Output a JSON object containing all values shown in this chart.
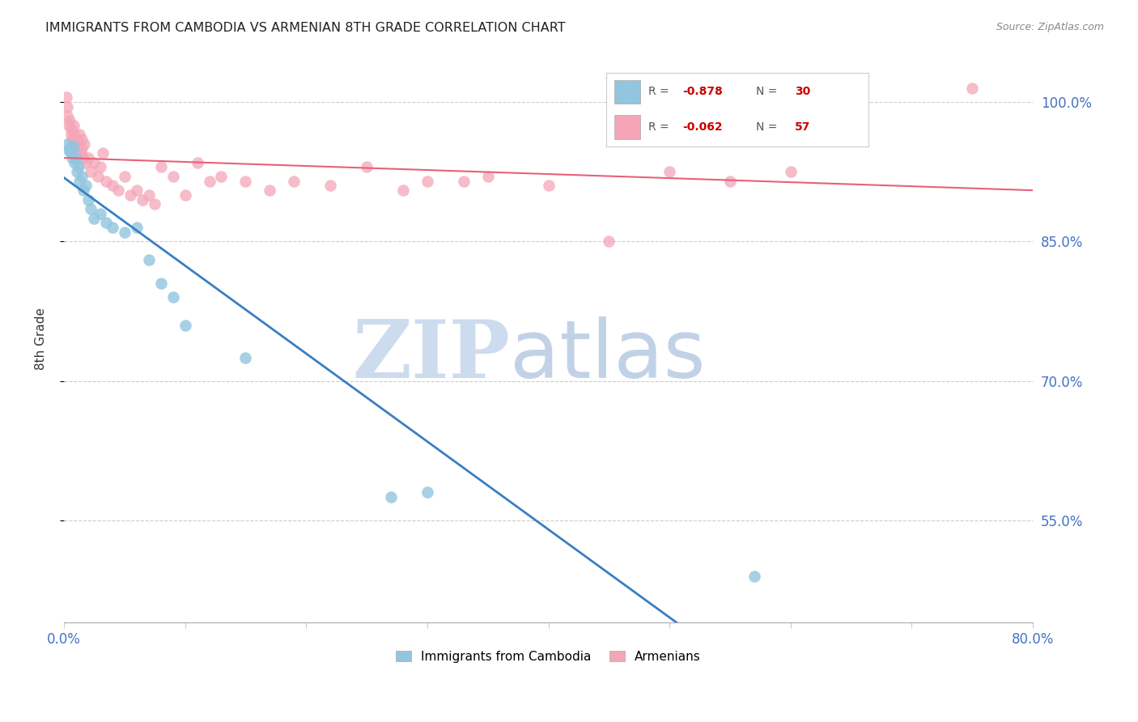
{
  "title": "IMMIGRANTS FROM CAMBODIA VS ARMENIAN 8TH GRADE CORRELATION CHART",
  "source": "Source: ZipAtlas.com",
  "ylabel": "8th Grade",
  "y_ticks": [
    55.0,
    70.0,
    85.0,
    100.0
  ],
  "x_min": 0.0,
  "x_max": 80.0,
  "y_min": 44.0,
  "y_max": 105.0,
  "blue_label": "Immigrants from Cambodia",
  "pink_label": "Armenians",
  "blue_r": -0.878,
  "blue_n": 30,
  "pink_r": -0.062,
  "pink_n": 57,
  "blue_color": "#92c5de",
  "pink_color": "#f4a6b8",
  "blue_edge_color": "#5a9dc0",
  "pink_edge_color": "#e07090",
  "blue_line_color": "#3a7fc1",
  "pink_line_color": "#e8607a",
  "watermark_zip_color": "#c8d8ee",
  "watermark_atlas_color": "#a8c0dc",
  "blue_x": [
    0.3,
    0.4,
    0.5,
    0.6,
    0.7,
    0.8,
    0.9,
    1.0,
    1.1,
    1.2,
    1.3,
    1.5,
    1.6,
    1.8,
    2.0,
    2.2,
    2.5,
    3.0,
    3.5,
    4.0,
    5.0,
    6.0,
    7.0,
    8.0,
    9.0,
    10.0,
    15.0,
    27.0,
    30.0,
    57.0
  ],
  "blue_y": [
    95.5,
    94.8,
    95.0,
    94.5,
    94.0,
    95.2,
    93.5,
    94.0,
    92.5,
    93.0,
    91.5,
    92.0,
    90.5,
    91.0,
    89.5,
    88.5,
    87.5,
    88.0,
    87.0,
    86.5,
    86.0,
    86.5,
    83.0,
    80.5,
    79.0,
    76.0,
    72.5,
    57.5,
    58.0,
    49.0
  ],
  "pink_x": [
    0.2,
    0.3,
    0.3,
    0.4,
    0.5,
    0.6,
    0.6,
    0.7,
    0.8,
    0.8,
    0.9,
    1.0,
    1.1,
    1.2,
    1.3,
    1.4,
    1.5,
    1.5,
    1.6,
    1.7,
    1.8,
    2.0,
    2.2,
    2.5,
    2.8,
    3.0,
    3.2,
    3.5,
    4.0,
    4.5,
    5.0,
    5.5,
    6.0,
    6.5,
    7.0,
    7.5,
    8.0,
    9.0,
    10.0,
    11.0,
    12.0,
    13.0,
    15.0,
    17.0,
    19.0,
    22.0,
    25.0,
    28.0,
    30.0,
    33.0,
    35.0,
    40.0,
    45.0,
    50.0,
    55.0,
    60.0,
    75.0
  ],
  "pink_y": [
    100.5,
    98.5,
    99.5,
    97.5,
    98.0,
    97.0,
    96.5,
    96.0,
    97.5,
    95.5,
    96.5,
    95.0,
    96.0,
    95.5,
    96.5,
    94.5,
    95.0,
    96.0,
    94.0,
    95.5,
    93.5,
    94.0,
    92.5,
    93.5,
    92.0,
    93.0,
    94.5,
    91.5,
    91.0,
    90.5,
    92.0,
    90.0,
    90.5,
    89.5,
    90.0,
    89.0,
    93.0,
    92.0,
    90.0,
    93.5,
    91.5,
    92.0,
    91.5,
    90.5,
    91.5,
    91.0,
    93.0,
    90.5,
    91.5,
    91.5,
    92.0,
    91.0,
    85.0,
    92.5,
    91.5,
    92.5,
    101.5
  ]
}
